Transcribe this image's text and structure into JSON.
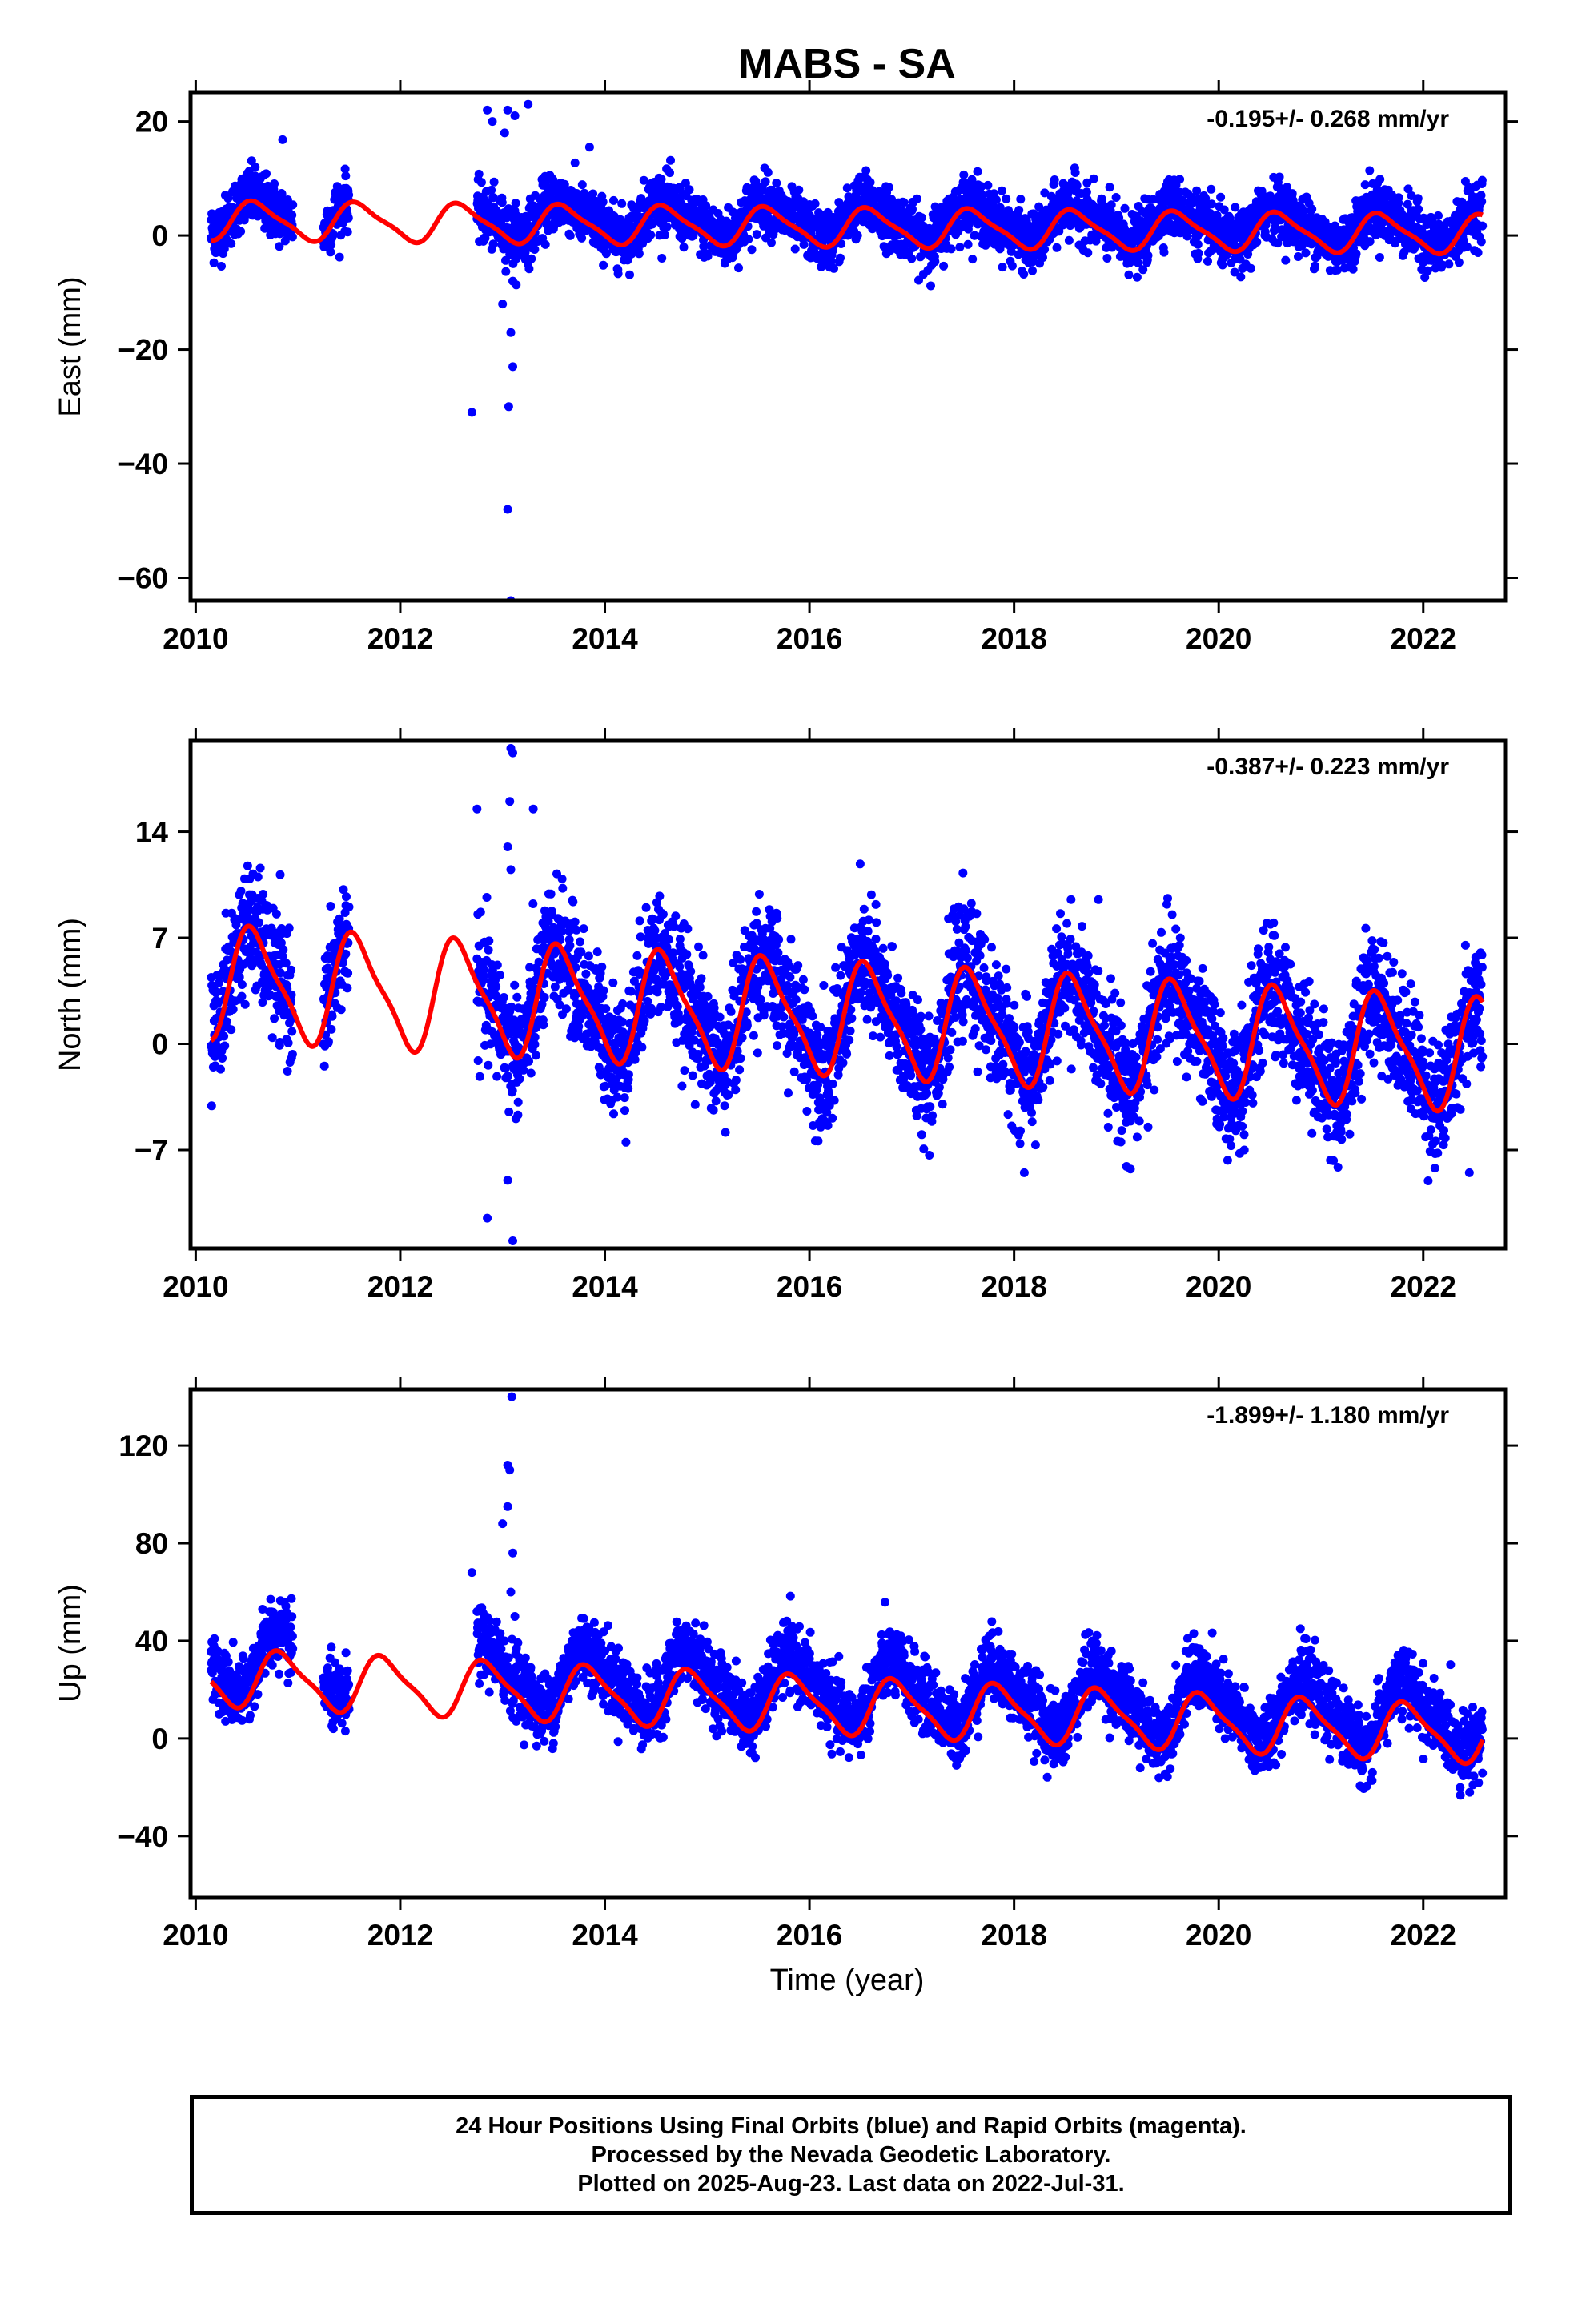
{
  "title": "MABS - SA",
  "xlabel": "Time (year)",
  "caption": [
    "24 Hour Positions Using Final Orbits (blue) and Rapid Orbits (magenta).",
    "Processed by the Nevada Geodetic Laboratory.",
    "Plotted on 2025-Aug-23. Last data on 2022-Jul-31."
  ],
  "colors": {
    "points": "#0000ff",
    "fit": "#ff0000",
    "axes": "#000000"
  },
  "chart_data": [
    {
      "type": "scatter",
      "ylabel": "East (mm)",
      "rate_label": "-0.195+/- 0.268 mm/yr",
      "xlim": [
        2009.95,
        2022.8
      ],
      "ylim": [
        -64,
        25
      ],
      "x_ticks": [
        2010,
        2012,
        2014,
        2016,
        2018,
        2020,
        2022
      ],
      "y_ticks": [
        -60,
        -40,
        -20,
        0,
        20
      ],
      "series": [
        {
          "kind": "daily_positions",
          "data_spans": [
            [
              2010.15,
              2010.95
            ],
            [
              2011.25,
              2011.5
            ],
            [
              2012.75,
              2022.58
            ]
          ],
          "amplitude": 3.0,
          "trend": -0.195,
          "offset": 2.5,
          "noise": 2.5
        },
        {
          "kind": "model_fit",
          "x_range": [
            2010.15,
            2022.58
          ],
          "amplitude": 3.2,
          "trend": -0.195,
          "offset": 1.5,
          "phase_peak": 0.6
        }
      ],
      "outliers": [
        [
          2012.7,
          -31
        ],
        [
          2012.85,
          22
        ],
        [
          2012.9,
          20
        ],
        [
          2013.02,
          18
        ],
        [
          2013.05,
          22
        ],
        [
          2013.08,
          -17
        ],
        [
          2013.1,
          -23
        ],
        [
          2013.06,
          -30
        ],
        [
          2013.05,
          -48
        ],
        [
          2013.08,
          -64
        ],
        [
          2013.12,
          21
        ],
        [
          2013.25,
          23
        ],
        [
          2013.85,
          15.5
        ],
        [
          2010.85,
          16.8
        ],
        [
          2013.0,
          -12
        ],
        [
          2013.1,
          -8
        ]
      ]
    },
    {
      "type": "scatter",
      "ylabel": "North (mm)",
      "rate_label": "-0.387+/- 0.223 mm/yr",
      "xlim": [
        2009.95,
        2022.8
      ],
      "ylim": [
        -13.5,
        20
      ],
      "x_ticks": [
        2010,
        2012,
        2014,
        2016,
        2018,
        2020,
        2022
      ],
      "y_ticks": [
        -7,
        0,
        7,
        14
      ],
      "series": [
        {
          "kind": "daily_positions",
          "data_spans": [
            [
              2010.15,
              2010.95
            ],
            [
              2011.25,
              2011.5
            ],
            [
              2012.75,
              2022.58
            ]
          ],
          "amplitude": 3.2,
          "trend": -0.387,
          "offset": 2.0,
          "noise": 2.0
        },
        {
          "kind": "model_fit",
          "x_range": [
            2010.15,
            2022.58
          ],
          "amplitude": 3.5,
          "trend": -0.387,
          "offset": 1.8,
          "phase_peak": 0.58
        }
      ],
      "outliers": [
        [
          2012.75,
          15.5
        ],
        [
          2012.85,
          -11.5
        ],
        [
          2013.08,
          19.5
        ],
        [
          2013.1,
          19.2
        ],
        [
          2013.07,
          16
        ],
        [
          2013.3,
          15.5
        ],
        [
          2013.05,
          13
        ],
        [
          2013.08,
          11.5
        ],
        [
          2013.1,
          -13
        ],
        [
          2013.05,
          -9
        ],
        [
          2016.65,
          9.2
        ],
        [
          2018.1,
          -8.5
        ],
        [
          2022.45,
          -8.5
        ],
        [
          2020.25,
          -7
        ]
      ]
    },
    {
      "type": "scatter",
      "ylabel": "Up (mm)",
      "rate_label": "-1.899+/- 1.180 mm/yr",
      "xlim": [
        2009.95,
        2022.8
      ],
      "ylim": [
        -65,
        143
      ],
      "x_ticks": [
        2010,
        2012,
        2014,
        2016,
        2018,
        2020,
        2022
      ],
      "y_ticks": [
        -40,
        0,
        40,
        80,
        120
      ],
      "series": [
        {
          "kind": "daily_positions",
          "data_spans": [
            [
              2010.15,
              2010.95
            ],
            [
              2011.25,
              2011.5
            ],
            [
              2012.75,
              2022.58
            ]
          ],
          "amplitude": 12,
          "trend": -1.899,
          "offset": 20,
          "noise": 7
        },
        {
          "kind": "model_fit",
          "x_range": [
            2010.15,
            2022.58
          ],
          "amplitude": 11,
          "trend": -1.899,
          "offset": 14,
          "phase_peak": 0.85
        }
      ],
      "outliers": [
        [
          2012.7,
          68
        ],
        [
          2013.05,
          112
        ],
        [
          2013.07,
          110
        ],
        [
          2013.0,
          88
        ],
        [
          2013.1,
          76
        ],
        [
          2013.08,
          60
        ],
        [
          2013.12,
          50
        ],
        [
          2013.09,
          140
        ],
        [
          2013.05,
          95
        ],
        [
          2013.02,
          40
        ]
      ]
    }
  ]
}
